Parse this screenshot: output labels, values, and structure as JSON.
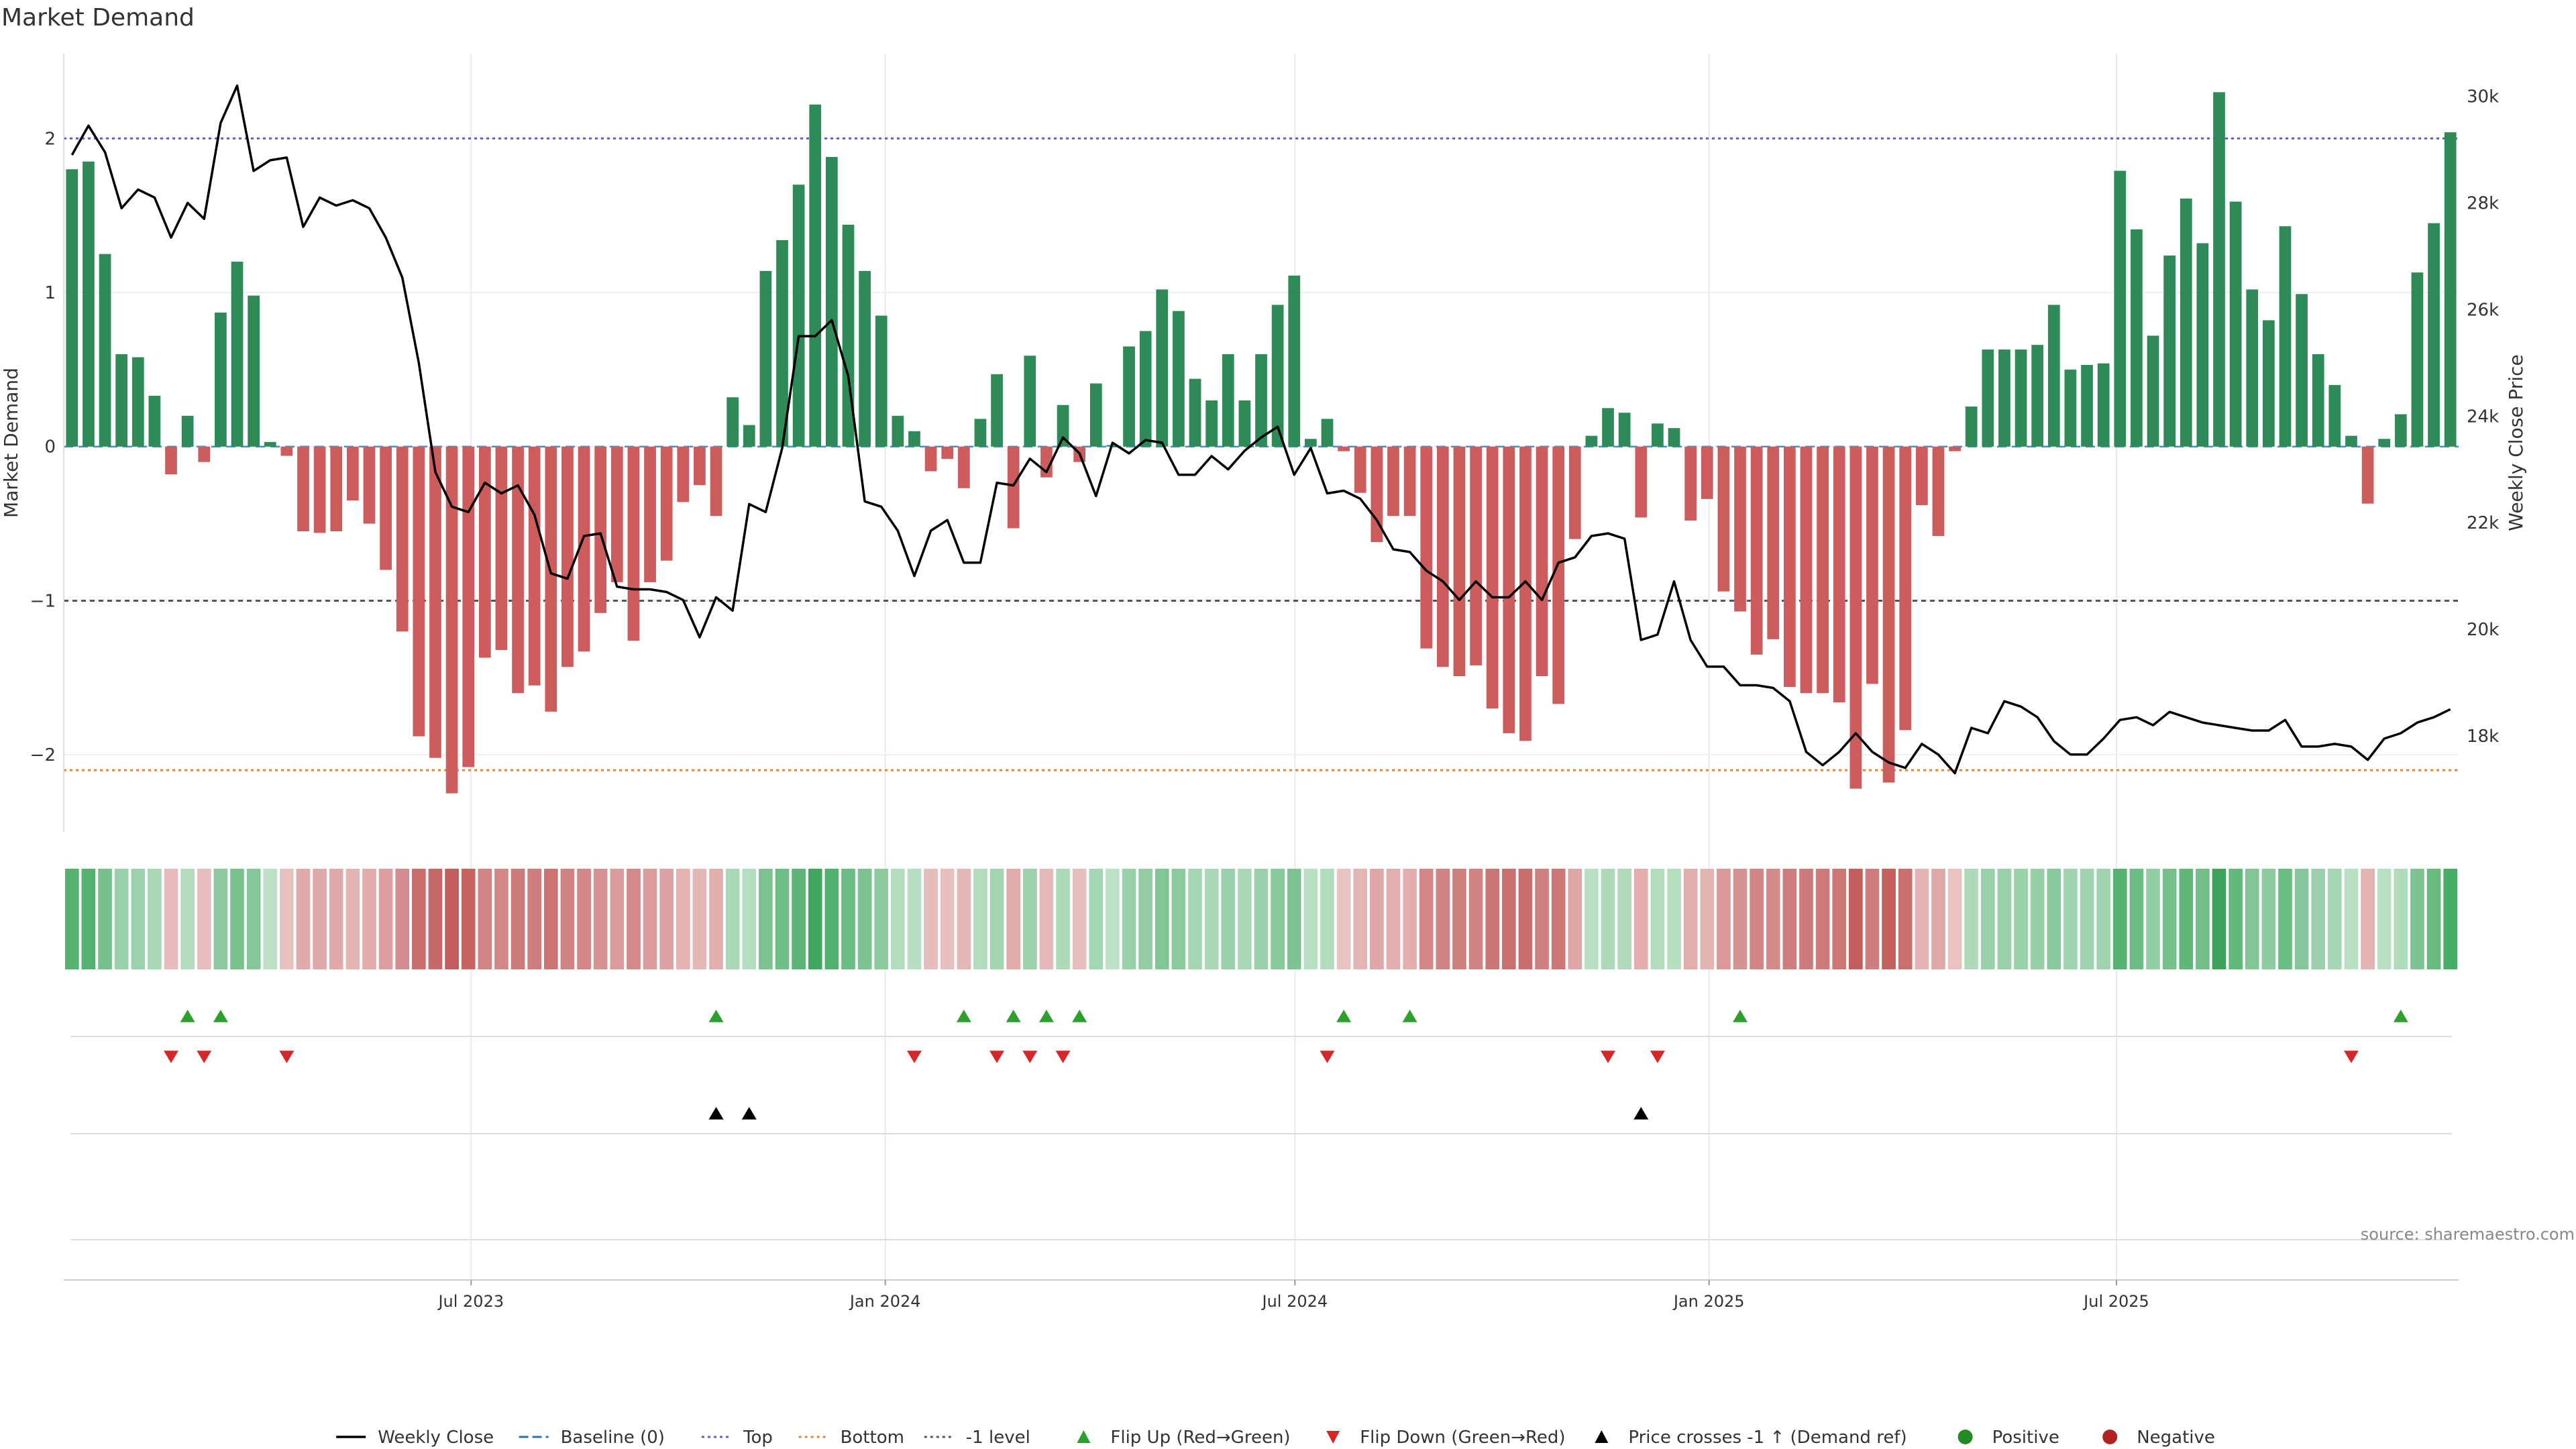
{
  "chart_data": {
    "type": "bar",
    "title": "Market Demand",
    "ylabel_left": "Market Demand",
    "ylabel_right": "Weekly Close Price",
    "source": "source: sharemaestro.com",
    "ylim_left": [
      -2.5,
      2.55
    ],
    "yticks_left": [
      2,
      1,
      0,
      -1,
      -2
    ],
    "ytick_labels_left": [
      "2",
      "1",
      "0",
      "−1",
      "−2"
    ],
    "ylim_right": [
      16200,
      30800
    ],
    "yticks_right": [
      30000,
      28000,
      26000,
      24000,
      22000,
      20000,
      18000
    ],
    "ytick_labels_right": [
      "30k",
      "28k",
      "26k",
      "24k",
      "22k",
      "20k",
      "18k"
    ],
    "x_start": "2023-01-01",
    "x_end": "2025-11-30",
    "xticks": [
      "2023-07-01",
      "2024-01-01",
      "2024-07-01",
      "2025-01-01",
      "2025-07-01"
    ],
    "xtick_labels": [
      "Jul 2023",
      "Jan 2024",
      "Jul 2024",
      "Jan 2025",
      "Jul 2025"
    ],
    "reference_lines": {
      "top": 2,
      "bottom": -2.1,
      "minus_one": -1,
      "baseline": 0
    },
    "grid": true,
    "legend_position": "bottom",
    "colors": {
      "positive": "#2e8b57",
      "negative": "#cd5c5c",
      "close": "#000000",
      "top": "#6a5acd",
      "bottom": "#e8852a",
      "minus_one": "#555555",
      "baseline": "#1f77b4",
      "flip_up": "#2ca02c",
      "flip_down": "#d62728",
      "cross": "#000000",
      "grid": "#e9e9e9"
    },
    "series": [
      {
        "name": "Market Demand",
        "kind": "bar",
        "values": [
          1.8,
          1.85,
          1.25,
          0.6,
          0.58,
          0.33,
          -0.18,
          0.2,
          -0.1,
          0.87,
          1.2,
          0.98,
          0.03,
          -0.06,
          -0.55,
          -0.56,
          -0.55,
          -0.35,
          -0.5,
          -0.8,
          -1.2,
          -1.88,
          -2.02,
          -2.25,
          -2.08,
          -1.37,
          -1.32,
          -1.6,
          -1.55,
          -1.72,
          -1.43,
          -1.33,
          -1.08,
          -0.88,
          -1.26,
          -0.88,
          -0.74,
          -0.36,
          -0.25,
          -0.45,
          0.32,
          0.14,
          1.14,
          1.34,
          1.7,
          2.22,
          1.88,
          1.44,
          1.14,
          0.85,
          0.2,
          0.1,
          -0.16,
          -0.08,
          -0.27,
          0.18,
          0.47,
          -0.53,
          0.59,
          -0.2,
          0.27,
          -0.1,
          0.41,
          0.01,
          0.65,
          0.75,
          1.02,
          0.88,
          0.44,
          0.3,
          0.6,
          0.3,
          0.6,
          0.92,
          1.11,
          0.05,
          0.18,
          -0.03,
          -0.3,
          -0.62,
          -0.45,
          -0.45,
          -1.31,
          -1.43,
          -1.49,
          -1.42,
          -1.7,
          -1.86,
          -1.91,
          -1.49,
          -1.67,
          -0.6,
          0.07,
          0.25,
          0.22,
          -0.46,
          0.15,
          0.12,
          -0.48,
          -0.34,
          -0.94,
          -1.07,
          -1.35,
          -1.25,
          -1.56,
          -1.6,
          -1.6,
          -1.66,
          -2.22,
          -1.54,
          -2.18,
          -1.84,
          -0.38,
          -0.58,
          -0.03,
          0.26,
          0.63,
          0.63,
          0.63,
          0.66,
          0.92,
          0.5,
          0.53,
          0.54,
          1.79,
          1.41,
          0.72,
          1.24,
          1.61,
          1.32,
          2.3,
          1.59,
          1.02,
          0.82,
          1.43,
          0.99,
          0.6,
          0.4,
          0.07,
          -0.37,
          0.05,
          0.21,
          1.13,
          1.45,
          2.04
        ]
      },
      {
        "name": "Weekly Close",
        "kind": "line",
        "values": [
          28900,
          29450,
          28950,
          27900,
          28250,
          28100,
          27350,
          28000,
          27700,
          29500,
          30200,
          28600,
          28800,
          28850,
          27550,
          28100,
          27950,
          28050,
          27900,
          27350,
          26600,
          25000,
          22950,
          22300,
          22200,
          22750,
          22550,
          22700,
          22150,
          21050,
          20950,
          21750,
          21800,
          20800,
          20750,
          20750,
          20700,
          20550,
          19850,
          20600,
          20350,
          22350,
          22200,
          23400,
          25500,
          25500,
          25800,
          24750,
          22400,
          22300,
          21850,
          21000,
          21850,
          22050,
          21250,
          21250,
          22750,
          22700,
          23200,
          22950,
          23600,
          23300,
          22500,
          23500,
          23300,
          23550,
          23500,
          22900,
          22900,
          23250,
          23000,
          23350,
          23600,
          23800,
          22900,
          23400,
          22550,
          22600,
          22450,
          22050,
          21500,
          21450,
          21100,
          20900,
          20550,
          20900,
          20600,
          20600,
          20900,
          20550,
          21250,
          21350,
          21750,
          21800,
          21700,
          19800,
          19900,
          20900,
          19800,
          19300,
          19300,
          18950,
          18950,
          18900,
          18650,
          17700,
          17450,
          17700,
          18050,
          17700,
          17500,
          17400,
          17850,
          17650,
          17300,
          18150,
          18050,
          18650,
          18550,
          18350,
          17900,
          17650,
          17650,
          17950,
          18300,
          18350,
          18200,
          18450,
          18350,
          18250,
          18200,
          18150,
          18100,
          18100,
          18300,
          17800,
          17800,
          17850,
          17800,
          17550,
          17950,
          18050,
          18250,
          18350,
          18500
        ]
      }
    ],
    "heat_strip": "Market Demand values shaded green (positive) / red (negative) by magnitude",
    "markers": {
      "flip_up": [
        7,
        9,
        39,
        54,
        57,
        59,
        61,
        77,
        81,
        101,
        141
      ],
      "flip_down": [
        6,
        8,
        13,
        51,
        56,
        58,
        60,
        76,
        93,
        96,
        138
      ],
      "price_cross_up": [
        39,
        41,
        95
      ]
    },
    "legend": [
      {
        "label": "Weekly Close",
        "symbol": "line",
        "color": "#000000"
      },
      {
        "label": "Baseline (0)",
        "symbol": "dash",
        "color": "#1f77b4"
      },
      {
        "label": "Top",
        "symbol": "dot",
        "color": "#6a5acd"
      },
      {
        "label": "Bottom",
        "symbol": "dot",
        "color": "#e8852a"
      },
      {
        "label": "-1 level",
        "symbol": "dot",
        "color": "#555555"
      },
      {
        "label": "Flip Up (Red→Green)",
        "symbol": "tri-up",
        "color": "#2ca02c"
      },
      {
        "label": "Flip Down (Green→Red)",
        "symbol": "tri-down",
        "color": "#d62728"
      },
      {
        "label": "Price crosses -1 ↑ (Demand ref)",
        "symbol": "tri-up",
        "color": "#000000"
      },
      {
        "label": "Positive",
        "symbol": "dot-circle",
        "color": "#228b22"
      },
      {
        "label": "Negative",
        "symbol": "dot-circle",
        "color": "#b22222"
      }
    ]
  }
}
